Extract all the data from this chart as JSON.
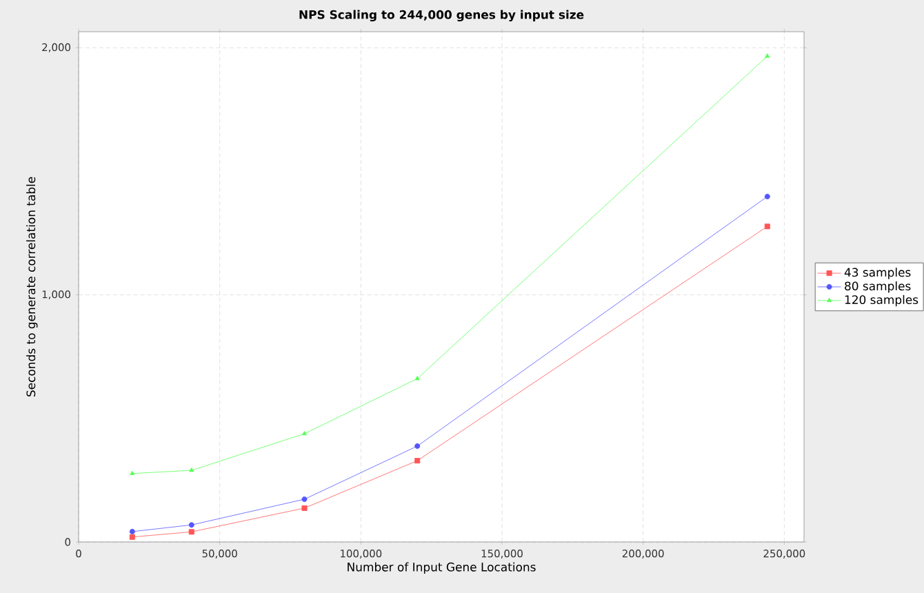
{
  "chart_data": {
    "type": "line",
    "title": "NPS Scaling to 244,000 genes by input size",
    "xlabel": "Number of Input Gene Locations",
    "ylabel": "Seconds to generate correlation table",
    "x": [
      19000,
      40000,
      80000,
      120000,
      244000
    ],
    "series": [
      {
        "name": "43 samples",
        "color": "#ff5555",
        "marker": "square",
        "values": [
          20,
          41,
          137,
          329,
          1277
        ]
      },
      {
        "name": "80 samples",
        "color": "#5555ff",
        "marker": "circle",
        "values": [
          42,
          69,
          173,
          388,
          1398
        ]
      },
      {
        "name": "120 samples",
        "color": "#55ff55",
        "marker": "triangle",
        "values": [
          277,
          290,
          438,
          661,
          1966
        ]
      }
    ],
    "xlim": [
      0,
      257000
    ],
    "ylim": [
      0,
      2065
    ],
    "xticks": [
      0,
      {
        "value": 50000,
        "label": "50,000"
      },
      {
        "value": 100000,
        "label": "100,000"
      },
      {
        "value": 150000,
        "label": "150,000"
      },
      {
        "value": 200000,
        "label": "200,000"
      },
      {
        "value": 250000,
        "label": "250,000"
      }
    ],
    "yticks": [
      0,
      {
        "value": 1000,
        "label": "1,000"
      },
      {
        "value": 2000,
        "label": "2,000"
      }
    ],
    "grid": true,
    "legend": "right",
    "line_style": "solid"
  }
}
